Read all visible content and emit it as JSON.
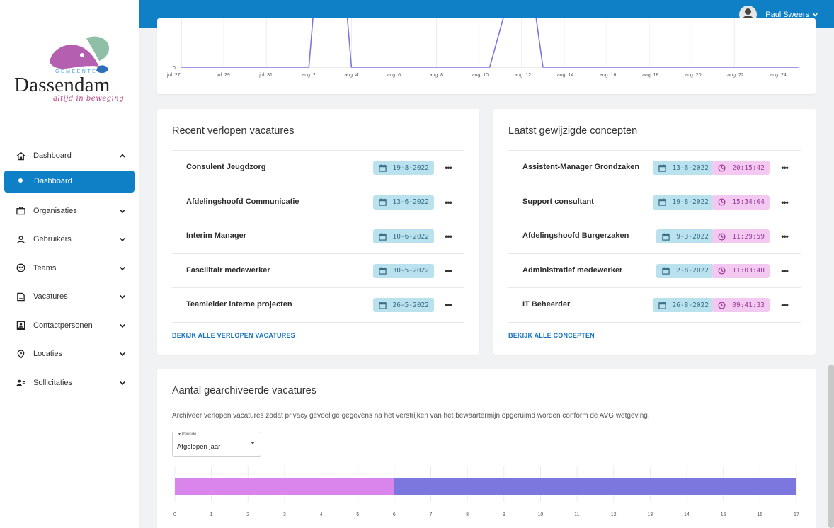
{
  "user": {
    "name": "Paul Sweers"
  },
  "logo": {
    "top_text": "GEMEENTE",
    "name": "Dassendam",
    "tagline": "altijd in beweging"
  },
  "sidebar": {
    "items": [
      {
        "label": "Dashboard",
        "icon": "home-icon",
        "expanded": true
      },
      {
        "label": "Dashboard",
        "icon": "dot-icon",
        "active": true
      },
      {
        "label": "Organisaties",
        "icon": "briefcase-icon"
      },
      {
        "label": "Gebruikers",
        "icon": "user-icon"
      },
      {
        "label": "Teams",
        "icon": "team-icon"
      },
      {
        "label": "Vacatures",
        "icon": "document-icon"
      },
      {
        "label": "Contactpersonen",
        "icon": "contact-card-icon"
      },
      {
        "label": "Locaties",
        "icon": "location-pin-icon"
      },
      {
        "label": "Sollicitaties",
        "icon": "people-icon"
      }
    ]
  },
  "colors": {
    "primary": "#0f7fc6",
    "line": "#7b77e0",
    "bar_pink": "#d985ec",
    "bar_purple": "#7c77de",
    "date_chip": "#b9e1ee",
    "time_chip": "#f3c8f1"
  },
  "top_chart": {
    "chart_data": {
      "type": "line",
      "categories": [
        "jul. 27",
        "jul. 29",
        "jul. 31",
        "aug. 2",
        "aug. 4",
        "aug. 6",
        "aug. 8",
        "aug. 10",
        "aug. 12",
        "aug. 14",
        "aug. 16",
        "aug. 18",
        "aug. 20",
        "aug. 22",
        "aug. 24"
      ],
      "y_tick_labels": [
        "0"
      ],
      "series": [
        {
          "x": [
            "jul. 27",
            "aug. 2",
            "aug. 2.3",
            "aug. 3.7",
            "aug. 4",
            "aug. 10.5",
            "aug. 11.5",
            "aug. 12.5",
            "aug. 13",
            "aug. 25"
          ],
          "values": [
            0,
            0,
            1,
            1,
            0,
            0,
            1,
            1,
            0,
            0
          ]
        }
      ],
      "grid": true
    }
  },
  "recent_expired": {
    "title": "Recent verlopen vacatures",
    "rows": [
      {
        "name": "Consulent Jeugdzorg",
        "date": "19-8-2022"
      },
      {
        "name": "Afdelingshoofd Communicatie",
        "date": "13-6-2022"
      },
      {
        "name": "Interim Manager",
        "date": "10-6-2022"
      },
      {
        "name": "Fascilitair medewerker",
        "date": "30-5-2022"
      },
      {
        "name": "Teamleider interne projecten",
        "date": "26-5-2022"
      }
    ],
    "link": "BEKIJK ALLE VERLOPEN VACATURES"
  },
  "last_concepts": {
    "title": "Laatst gewijzigde concepten",
    "rows": [
      {
        "name": "Assistent-Manager Grondzaken",
        "date": "13-6-2022",
        "time": "20:15:42"
      },
      {
        "name": "Support consultant",
        "date": "19-8-2022",
        "time": "15:34:04"
      },
      {
        "name": "Afdelingshoofd Burgerzaken",
        "date": "9-3-2022",
        "time": "11:29:59"
      },
      {
        "name": "Administratief medewerker",
        "date": "2-8-2022",
        "time": "11:03:40"
      },
      {
        "name": "IT Beheerder",
        "date": "26-8-2022",
        "time": "09:41:33"
      }
    ],
    "link": "BEKIJK ALLE CONCEPTEN"
  },
  "archived": {
    "title": "Aantal gearchiveerde vacatures",
    "description": "Archiveer verlopen vacatures zodat privacy gevoelige gegevens na het verstrijken van het bewaartermijn opgeruimd worden conform de AVG wetgeving.",
    "select": {
      "label": "Periode",
      "value": "Afgelopen jaar"
    },
    "chart_data": {
      "type": "bar",
      "orientation": "horizontal",
      "stacked": true,
      "series": [
        {
          "values": [
            6
          ]
        },
        {
          "values": [
            11
          ]
        }
      ],
      "xlim": [
        0,
        17
      ],
      "x_tick_labels": [
        "0",
        "1",
        "2",
        "3",
        "4",
        "5",
        "6",
        "7",
        "8",
        "9",
        "10",
        "11",
        "12",
        "13",
        "14",
        "15",
        "16",
        "17"
      ],
      "grid": true
    }
  }
}
